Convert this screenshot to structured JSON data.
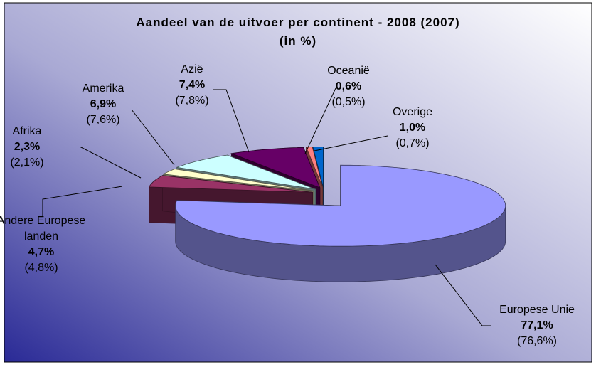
{
  "chart_data": {
    "type": "pie",
    "title": "Aandeel van de uitvoer per continent - 2008 (2007)",
    "subtitle": "(in %)",
    "categories": [
      "Europese Unie",
      "Andere Europese landen",
      "Afrika",
      "Amerika",
      "Azië",
      "Oceanië",
      "Overige"
    ],
    "values": [
      77.1,
      4.7,
      2.3,
      6.9,
      7.4,
      0.6,
      1.0
    ],
    "value_labels": [
      "77,1%",
      "4,7%",
      "2,3%",
      "6,9%",
      "7,4%",
      "0,6%",
      "1,0%"
    ],
    "previous_values": [
      76.6,
      4.8,
      2.1,
      7.6,
      7.8,
      0.5,
      0.7
    ],
    "previous_value_labels": [
      "(76,6%)",
      "(4,8%)",
      "(2,1%)",
      "(7,6%)",
      "(7,8%)",
      "(0,5%)",
      "(0,7%)"
    ],
    "colors": [
      "#9999ff",
      "#993366",
      "#ffffcc",
      "#ccffff",
      "#660066",
      "#ff8080",
      "#0066cc"
    ]
  }
}
